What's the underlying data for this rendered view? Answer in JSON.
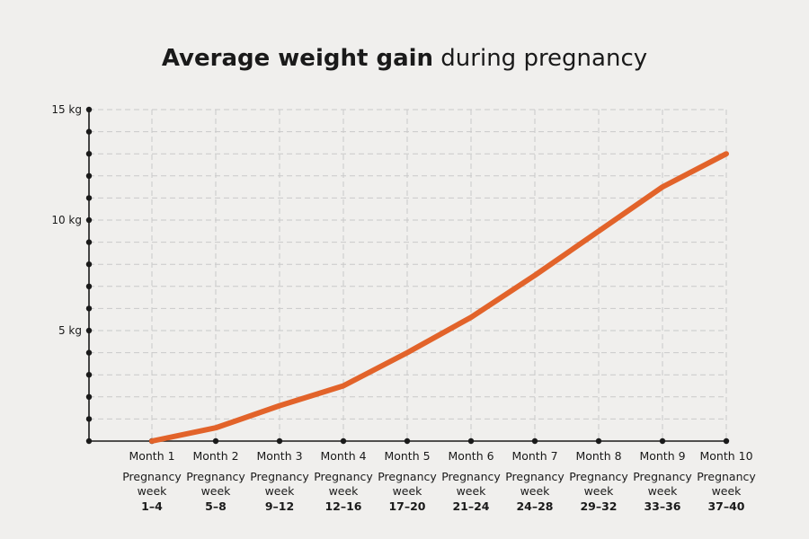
{
  "chart_data": {
    "type": "line",
    "title_bold": "Average weight gain",
    "title_rest": " during pregnancy",
    "categories": [
      "Month 1",
      "Month 2",
      "Month 3",
      "Month 4",
      "Month 5",
      "Month 6",
      "Month 7",
      "Month 8",
      "Month 9",
      "Month 10"
    ],
    "week_label": "Pregnancy week",
    "weeks": [
      "1–4",
      "5–8",
      "9–12",
      "12–16",
      "17–20",
      "21–24",
      "24–28",
      "29–32",
      "33–36",
      "37–40"
    ],
    "series": [
      {
        "values": [
          0,
          0.6,
          1.6,
          2.5,
          4.0,
          5.6,
          7.5,
          9.5,
          11.5,
          13.0
        ]
      }
    ],
    "y_unit": "kg",
    "ylim": [
      0,
      15
    ],
    "y_tick_labels": [
      {
        "value": 5,
        "label": "5 kg"
      },
      {
        "value": 10,
        "label": "10 kg"
      },
      {
        "value": 15,
        "label": "15 kg"
      }
    ],
    "y_minor_step": 1,
    "grid": true,
    "line_color": "#e2632a",
    "axis_color": "#1a1a1a",
    "background": "#f0efed"
  }
}
